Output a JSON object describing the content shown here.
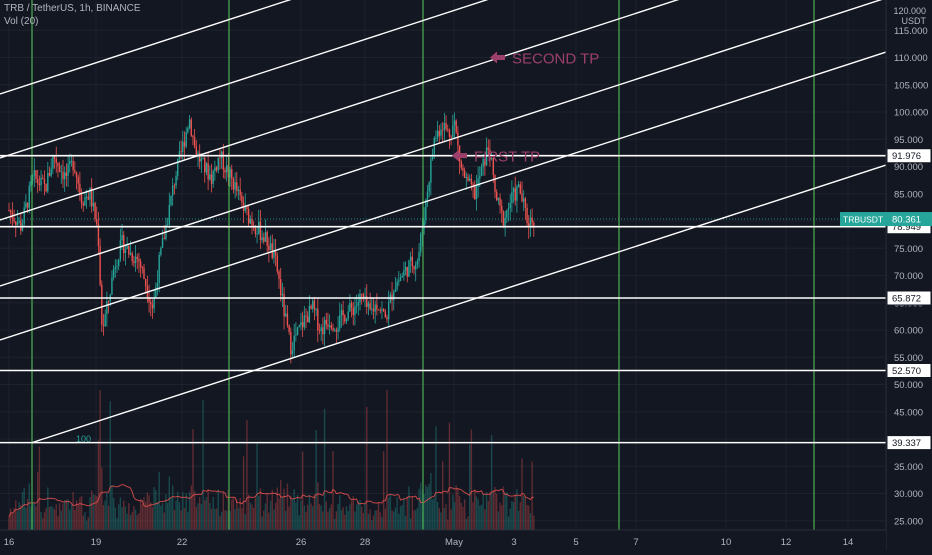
{
  "header": {
    "symbol_line": "TRB / TetherUS, 1h, BINANCE",
    "volume_line": "Vol (20)"
  },
  "axis": {
    "top_value": "120.000",
    "currency": "USDT"
  },
  "colors": {
    "background": "#131722",
    "up": "#26a69a",
    "down": "#ef5350",
    "vertical_lines": "#4caf50",
    "drawing": "#ffffff",
    "annotation": "#9c3f6b",
    "last_price_bg": "#26a69a"
  },
  "annotations": [
    {
      "name": "second-tp",
      "text": "SECOND TP",
      "price": 110
    },
    {
      "name": "first-tp",
      "text": "FIRST TP",
      "price": 92
    }
  ],
  "volume_ma_label": "100",
  "chart_data": {
    "type": "candlestick",
    "symbol": "TRBUSDT",
    "ylim": [
      23,
      120
    ],
    "y_ticks": [
      25,
      30,
      35,
      40,
      45,
      50,
      55,
      60,
      65,
      70,
      75,
      80,
      85,
      90,
      95,
      100,
      105,
      110,
      115
    ],
    "x_ticks": [
      "16",
      "19",
      "22",
      "26",
      "28",
      "May",
      "3",
      "5",
      "7",
      "10",
      "12",
      "14"
    ],
    "last_price": {
      "label": "TRBUSDT",
      "value": 80.361
    },
    "horizontal_levels": [
      91.976,
      78.949,
      65.872,
      52.57,
      39.337
    ],
    "price_path": [
      {
        "day": 16.0,
        "price": 82
      },
      {
        "day": 16.3,
        "price": 79
      },
      {
        "day": 16.6,
        "price": 88
      },
      {
        "day": 16.9,
        "price": 86
      },
      {
        "day": 17.1,
        "price": 92
      },
      {
        "day": 17.4,
        "price": 88
      },
      {
        "day": 17.6,
        "price": 91
      },
      {
        "day": 17.8,
        "price": 84
      },
      {
        "day": 18.0,
        "price": 85
      },
      {
        "day": 18.2,
        "price": 78
      },
      {
        "day": 18.3,
        "price": 60
      },
      {
        "day": 18.45,
        "price": 65
      },
      {
        "day": 18.6,
        "price": 72
      },
      {
        "day": 18.8,
        "price": 76
      },
      {
        "day": 19.0,
        "price": 74
      },
      {
        "day": 19.2,
        "price": 73
      },
      {
        "day": 19.4,
        "price": 68
      },
      {
        "day": 19.55,
        "price": 64
      },
      {
        "day": 19.7,
        "price": 72
      },
      {
        "day": 19.9,
        "price": 80
      },
      {
        "day": 20.1,
        "price": 88
      },
      {
        "day": 20.3,
        "price": 94
      },
      {
        "day": 20.45,
        "price": 99
      },
      {
        "day": 20.6,
        "price": 93
      },
      {
        "day": 20.8,
        "price": 90
      },
      {
        "day": 21.0,
        "price": 88
      },
      {
        "day": 21.2,
        "price": 92
      },
      {
        "day": 21.4,
        "price": 89
      },
      {
        "day": 21.6,
        "price": 86
      },
      {
        "day": 21.8,
        "price": 82
      },
      {
        "day": 22.0,
        "price": 80
      },
      {
        "day": 22.2,
        "price": 78
      },
      {
        "day": 22.4,
        "price": 76
      },
      {
        "day": 22.6,
        "price": 72
      },
      {
        "day": 22.8,
        "price": 63
      },
      {
        "day": 22.95,
        "price": 57
      },
      {
        "day": 23.1,
        "price": 59
      },
      {
        "day": 23.3,
        "price": 62
      },
      {
        "day": 23.5,
        "price": 64
      },
      {
        "day": 23.7,
        "price": 60
      },
      {
        "day": 23.9,
        "price": 62
      },
      {
        "day": 24.1,
        "price": 61
      },
      {
        "day": 24.3,
        "price": 63
      },
      {
        "day": 24.5,
        "price": 64
      },
      {
        "day": 24.7,
        "price": 66
      },
      {
        "day": 24.9,
        "price": 63
      },
      {
        "day": 25.1,
        "price": 65
      },
      {
        "day": 25.3,
        "price": 62
      },
      {
        "day": 25.5,
        "price": 68
      },
      {
        "day": 25.7,
        "price": 70
      },
      {
        "day": 25.9,
        "price": 72
      },
      {
        "day": 26.1,
        "price": 73
      },
      {
        "day": 26.3,
        "price": 84
      },
      {
        "day": 26.5,
        "price": 95
      },
      {
        "day": 26.7,
        "price": 98
      },
      {
        "day": 26.85,
        "price": 96
      },
      {
        "day": 27.0,
        "price": 98
      },
      {
        "day": 27.15,
        "price": 90
      },
      {
        "day": 27.3,
        "price": 87
      },
      {
        "day": 27.5,
        "price": 85
      },
      {
        "day": 27.7,
        "price": 90
      },
      {
        "day": 27.85,
        "price": 94
      },
      {
        "day": 28.0,
        "price": 85
      },
      {
        "day": 28.2,
        "price": 80
      },
      {
        "day": 28.4,
        "price": 84
      },
      {
        "day": 28.6,
        "price": 86
      },
      {
        "day": 28.8,
        "price": 80
      },
      {
        "day": 29.0,
        "price": 80.361
      }
    ]
  }
}
